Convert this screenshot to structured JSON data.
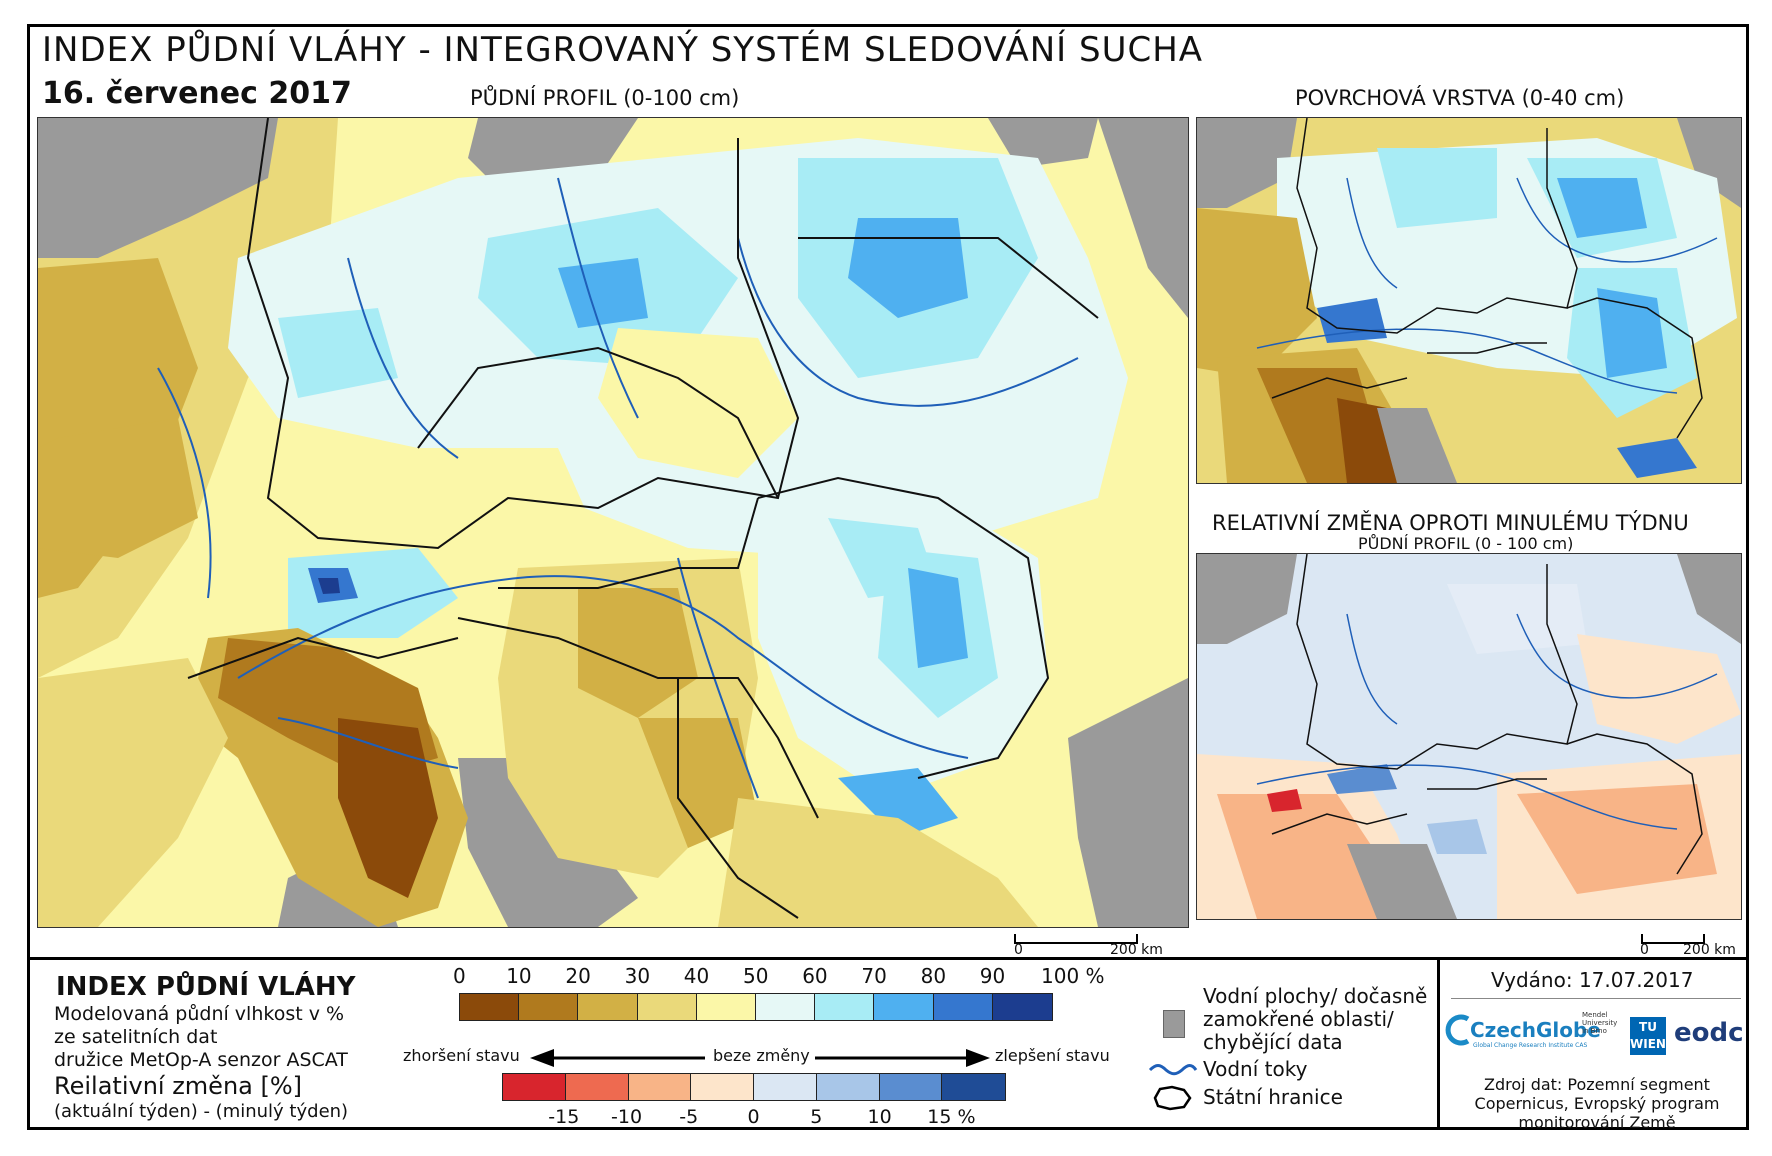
{
  "header": {
    "title": "INDEX PŮDNÍ VLÁHY - INTEGROVANÝ SYSTÉM SLEDOVÁNÍ SUCHA",
    "date": "16. červenec 2017"
  },
  "maps": {
    "main_label": "PŮDNÍ PROFIL (0-100 cm)",
    "top_right_label": "POVRCHOVÁ VRSTVA (0-40 cm)",
    "bottom_right_label": "RELATIVNÍ ZMĚNA OPROTI MINULÉMU TÝDNU",
    "bottom_right_sublabel": "PŮDNÍ PROFIL (0 - 100 cm)",
    "scale_main_zero": "0",
    "scale_main_end": "200 km",
    "scale_small_zero": "0",
    "scale_small_end": "200 km"
  },
  "legend": {
    "heading": "INDEX PŮDNÍ VLÁHY",
    "desc_line1": "Modelovaná půdní vlhkost v %",
    "desc_line2": "ze satelitních dat",
    "desc_line3": "družice MetOp-A senzor ASCAT",
    "change_heading": "Reilativní změna [%]",
    "change_desc": "(aktuální týden) - (minulý týden)",
    "moisture_ticks": [
      "0",
      "10",
      "20",
      "30",
      "40",
      "50",
      "60",
      "70",
      "80",
      "90",
      "100 %"
    ],
    "moisture_colors": [
      "#8b4a0a",
      "#b07a1e",
      "#d2b045",
      "#ead97a",
      "#fbf7a8",
      "#e6f8f6",
      "#a8ecf5",
      "#4fb0f0",
      "#3577cf",
      "#1c3d8f"
    ],
    "change_ticks": [
      "-15",
      "-10",
      "-5",
      "0",
      "5",
      "10",
      "15 %"
    ],
    "change_colors": [
      "#d8252d",
      "#ee6a50",
      "#f8b487",
      "#fde5cb",
      "#dbe7f3",
      "#a8c6e8",
      "#5a8dd0",
      "#1f4c96"
    ],
    "arrow_left": "zhoršení stavu",
    "arrow_mid": "beze změny",
    "arrow_right": "zlepšení stavu",
    "water_label_line1": "Vodní plochy/ dočasně",
    "water_label_line2": "zamokřené oblasti/",
    "water_label_line3": "chybějící data",
    "rivers_label": "Vodní toky",
    "borders_label": "Státní hranice"
  },
  "info": {
    "issued": "Vydáno: 17.07.2017",
    "logo_czechglobe": "CzechGlobe",
    "logo_czechglobe_sub": "Global Change Research Institute CAS",
    "logo_mendel": "Mendel University in Brno",
    "logo_tuwien": "TU WIEN",
    "logo_eodc": "eodc",
    "source_line1": "Zdroj dat: Pozemní segment",
    "source_line2": "Copernicus, Evropský program",
    "source_line3": "monitorování Země"
  }
}
